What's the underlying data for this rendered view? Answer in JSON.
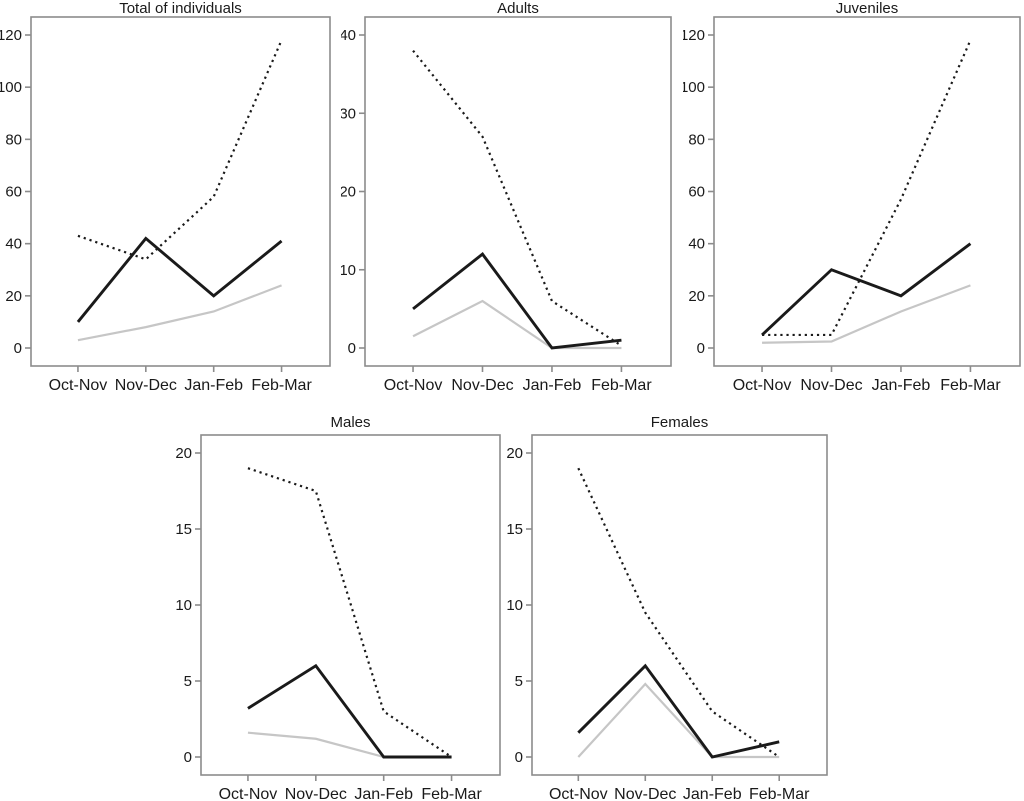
{
  "figure": {
    "background": "#ffffff",
    "axis_color": "#8c8c8c",
    "text_color": "#1a1a1a",
    "gray_line_color": "#c6c6c6",
    "black_line_color": "#1a1a1a",
    "grid": "off",
    "legend": "none"
  },
  "chart_data": [
    {
      "type": "line",
      "title": "Total of individuals",
      "categories": [
        "Oct-Nov",
        "Nov-Dec",
        "Jan-Feb",
        "Feb-Mar"
      ],
      "y_ticks": [
        0,
        20,
        40,
        60,
        80,
        100,
        120
      ],
      "ylim": [
        0,
        120
      ],
      "xlabel": "",
      "ylabel": "",
      "series": [
        {
          "name": "dotted-black",
          "style": "dotted",
          "color": "#1a1a1a",
          "values": [
            43,
            34,
            58,
            118
          ]
        },
        {
          "name": "solid-black",
          "style": "solid",
          "color": "#1a1a1a",
          "values": [
            10,
            42,
            20,
            41
          ]
        },
        {
          "name": "solid-gray",
          "style": "solid",
          "color": "#c6c6c6",
          "values": [
            3,
            8,
            14,
            24
          ]
        }
      ]
    },
    {
      "type": "line",
      "title": "Adults",
      "categories": [
        "Oct-Nov",
        "Nov-Dec",
        "Jan-Feb",
        "Feb-Mar"
      ],
      "y_ticks": [
        0,
        10,
        20,
        30,
        40
      ],
      "ylim": [
        0,
        40
      ],
      "xlabel": "",
      "ylabel": "",
      "series": [
        {
          "name": "dotted-black",
          "style": "dotted",
          "color": "#1a1a1a",
          "values": [
            38,
            27,
            6,
            0.3
          ]
        },
        {
          "name": "solid-black",
          "style": "solid",
          "color": "#1a1a1a",
          "values": [
            5,
            12,
            0,
            1
          ]
        },
        {
          "name": "solid-gray",
          "style": "solid",
          "color": "#c6c6c6",
          "values": [
            1.5,
            6,
            0,
            0
          ]
        }
      ]
    },
    {
      "type": "line",
      "title": "Juveniles",
      "categories": [
        "Oct-Nov",
        "Nov-Dec",
        "Jan-Feb",
        "Feb-Mar"
      ],
      "y_ticks": [
        0,
        20,
        40,
        60,
        80,
        100,
        120
      ],
      "ylim": [
        0,
        120
      ],
      "xlabel": "",
      "ylabel": "",
      "series": [
        {
          "name": "dotted-black",
          "style": "dotted",
          "color": "#1a1a1a",
          "values": [
            5,
            5,
            57,
            118
          ]
        },
        {
          "name": "solid-black",
          "style": "solid",
          "color": "#1a1a1a",
          "values": [
            5,
            30,
            20,
            40
          ]
        },
        {
          "name": "solid-gray",
          "style": "solid",
          "color": "#c6c6c6",
          "values": [
            2,
            2.5,
            14,
            24
          ]
        }
      ]
    },
    {
      "type": "line",
      "title": "Males",
      "categories": [
        "Oct-Nov",
        "Nov-Dec",
        "Jan-Feb",
        "Feb-Mar"
      ],
      "y_ticks": [
        0,
        5,
        10,
        15,
        20
      ],
      "ylim": [
        0,
        20
      ],
      "xlabel": "",
      "ylabel": "",
      "series": [
        {
          "name": "dotted-black",
          "style": "dotted",
          "color": "#1a1a1a",
          "values": [
            19,
            17.5,
            3,
            0
          ]
        },
        {
          "name": "solid-black",
          "style": "solid",
          "color": "#1a1a1a",
          "values": [
            3.2,
            6,
            0,
            0
          ]
        },
        {
          "name": "solid-gray",
          "style": "solid",
          "color": "#c6c6c6",
          "values": [
            1.6,
            1.2,
            0,
            0
          ]
        }
      ]
    },
    {
      "type": "line",
      "title": "Females",
      "categories": [
        "Oct-Nov",
        "Nov-Dec",
        "Jan-Feb",
        "Feb-Mar"
      ],
      "y_ticks": [
        0,
        5,
        10,
        15,
        20
      ],
      "ylim": [
        0,
        20
      ],
      "xlabel": "",
      "ylabel": "",
      "series": [
        {
          "name": "dotted-black",
          "style": "dotted",
          "color": "#1a1a1a",
          "values": [
            19,
            9.5,
            3,
            0
          ]
        },
        {
          "name": "solid-black",
          "style": "solid",
          "color": "#1a1a1a",
          "values": [
            1.6,
            6,
            0,
            1
          ]
        },
        {
          "name": "solid-gray",
          "style": "solid",
          "color": "#c6c6c6",
          "values": [
            0,
            4.8,
            0,
            0
          ]
        }
      ]
    }
  ]
}
